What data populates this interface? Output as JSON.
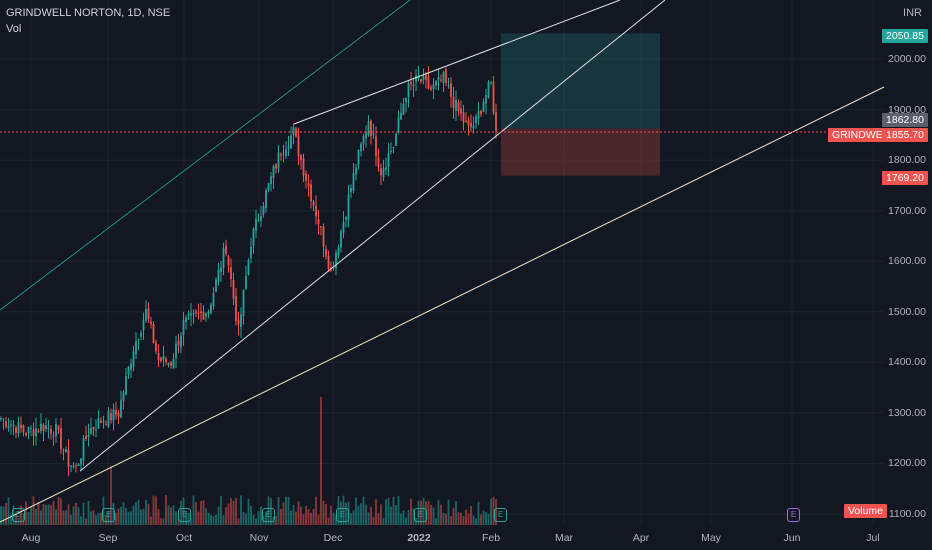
{
  "header": {
    "title": "GRINDWELL NORTON, 1D, NSE",
    "vol_label": "Vol",
    "currency": "INR"
  },
  "colors": {
    "up": "#26a69a",
    "down": "#ef5350",
    "background": "#131722",
    "grid": "#1e222d",
    "target_zone": "#26a69a",
    "stop_zone": "#ef5350"
  },
  "tags": {
    "target": "2050.85",
    "last": "1862.80",
    "symbol": "GRINDWELL",
    "symbol_price": "1855.70",
    "stop": "1769.20",
    "volume": "Volume"
  },
  "markers": {
    "earnings": "E"
  },
  "chart_data": {
    "type": "candlestick",
    "title": "GRINDWELL NORTON, 1D, NSE",
    "x_ticks": [
      "Aug",
      "Sep",
      "Oct",
      "Nov",
      "Dec",
      "2022",
      "Feb",
      "Mar",
      "Apr",
      "May",
      "Jun",
      "Jul"
    ],
    "y_ticks": [
      1100,
      1200,
      1300,
      1400,
      1500,
      1600,
      1700,
      1800,
      1900,
      2000
    ],
    "ylim": [
      1085,
      2110
    ],
    "annotations": {
      "long_position": {
        "entry": 1862.8,
        "target": 2050.85,
        "stop": 1769.2
      },
      "last_price": 1855.7
    },
    "anchors": [
      {
        "d": 0,
        "p": 1290
      },
      {
        "d": 10,
        "p": 1262
      },
      {
        "d": 17,
        "p": 1275
      },
      {
        "d": 22,
        "p": 1265
      },
      {
        "d": 27,
        "p": 1202
      },
      {
        "d": 30,
        "p": 1190
      },
      {
        "d": 35,
        "p": 1265
      },
      {
        "d": 40,
        "p": 1285
      },
      {
        "d": 47,
        "p": 1300
      },
      {
        "d": 53,
        "p": 1430
      },
      {
        "d": 58,
        "p": 1500
      },
      {
        "d": 63,
        "p": 1405
      },
      {
        "d": 68,
        "p": 1400
      },
      {
        "d": 73,
        "p": 1475
      },
      {
        "d": 78,
        "p": 1490
      },
      {
        "d": 83,
        "p": 1505
      },
      {
        "d": 90,
        "p": 1630
      },
      {
        "d": 95,
        "p": 1460
      },
      {
        "d": 100,
        "p": 1640
      },
      {
        "d": 105,
        "p": 1720
      },
      {
        "d": 112,
        "p": 1820
      },
      {
        "d": 117,
        "p": 1855
      },
      {
        "d": 120,
        "p": 1800
      },
      {
        "d": 127,
        "p": 1680
      },
      {
        "d": 132,
        "p": 1580
      },
      {
        "d": 137,
        "p": 1680
      },
      {
        "d": 142,
        "p": 1790
      },
      {
        "d": 147,
        "p": 1880
      },
      {
        "d": 152,
        "p": 1780
      },
      {
        "d": 157,
        "p": 1830
      },
      {
        "d": 162,
        "p": 1935
      },
      {
        "d": 167,
        "p": 1960
      },
      {
        "d": 172,
        "p": 1940
      },
      {
        "d": 177,
        "p": 1960
      },
      {
        "d": 182,
        "p": 1905
      },
      {
        "d": 187,
        "p": 1860
      },
      {
        "d": 190,
        "p": 1875
      },
      {
        "d": 193,
        "p": 1920
      },
      {
        "d": 196,
        "p": 1950
      },
      {
        "d": 198,
        "p": 1858
      }
    ],
    "volume": {
      "scale_max": 12,
      "spikes": [
        {
          "d": 44,
          "v": 5.5
        },
        {
          "d": 128,
          "v": 12
        }
      ]
    }
  }
}
